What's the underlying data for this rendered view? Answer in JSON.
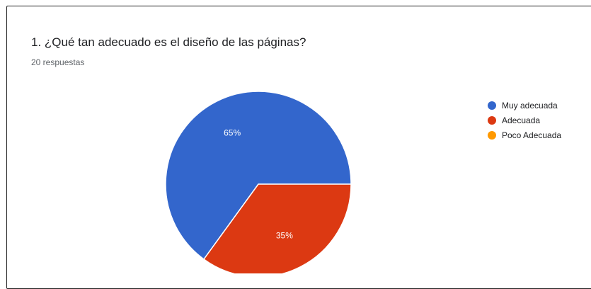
{
  "question": {
    "title": "1. ¿Qué tan adecuado es el diseño de las páginas?",
    "responses": "20 respuestas"
  },
  "chart_data": {
    "type": "pie",
    "categories": [
      "Muy adecuada",
      "Adecuada",
      "Poco Adecuada"
    ],
    "values": [
      65,
      35,
      0
    ],
    "labels": [
      "65%",
      "35%",
      ""
    ],
    "colors": [
      "#3366cc",
      "#dc3912",
      "#ff9900"
    ],
    "legend": "right"
  }
}
